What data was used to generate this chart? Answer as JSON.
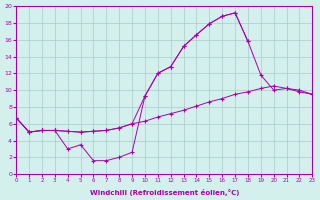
{
  "xlabel": "Windchill (Refroidissement éolien,°C)",
  "bg_color": "#d4f0ec",
  "line_color": "#aa00aa",
  "xlim": [
    0,
    23
  ],
  "ylim": [
    0,
    20
  ],
  "xticks": [
    0,
    1,
    2,
    3,
    4,
    5,
    6,
    7,
    8,
    9,
    10,
    11,
    12,
    13,
    14,
    15,
    16,
    17,
    18,
    19,
    20,
    21,
    22,
    23
  ],
  "yticks": [
    0,
    2,
    4,
    6,
    8,
    10,
    12,
    14,
    16,
    18,
    20
  ],
  "grid_color": "#aacccc",
  "s1_x": [
    0,
    1,
    2,
    3,
    4,
    5,
    6,
    7,
    8,
    9,
    10,
    11,
    12,
    13,
    14,
    15,
    16,
    17,
    18,
    19,
    20,
    21,
    22,
    23
  ],
  "s1_y": [
    6.7,
    5.0,
    5.2,
    5.2,
    5.1,
    5.0,
    5.1,
    5.2,
    5.5,
    6.0,
    6.3,
    6.8,
    7.2,
    7.6,
    8.1,
    8.6,
    9.0,
    9.5,
    9.8,
    10.2,
    10.5,
    10.2,
    9.8,
    9.5
  ],
  "s2_x": [
    0,
    1,
    2,
    3,
    4,
    5,
    6,
    7,
    8,
    9,
    10,
    11,
    12,
    13,
    14,
    15,
    16,
    17,
    18,
    19,
    20,
    21,
    22,
    23
  ],
  "s2_y": [
    6.7,
    5.0,
    5.2,
    5.2,
    3.0,
    3.5,
    1.6,
    1.6,
    2.0,
    2.6,
    9.3,
    12.0,
    12.8,
    15.2,
    16.6,
    17.9,
    18.8,
    19.2,
    15.8,
    11.8,
    10.0,
    10.2,
    10.0,
    9.5
  ],
  "s3_x": [
    0,
    1,
    2,
    3,
    4,
    5,
    6,
    7,
    8,
    9,
    10,
    11,
    12,
    13,
    14,
    15,
    16,
    17,
    18
  ],
  "s3_y": [
    6.7,
    5.0,
    5.2,
    5.2,
    5.1,
    5.0,
    5.1,
    5.2,
    5.5,
    6.0,
    9.3,
    12.0,
    12.8,
    15.2,
    16.6,
    17.9,
    18.8,
    19.2,
    15.8
  ]
}
